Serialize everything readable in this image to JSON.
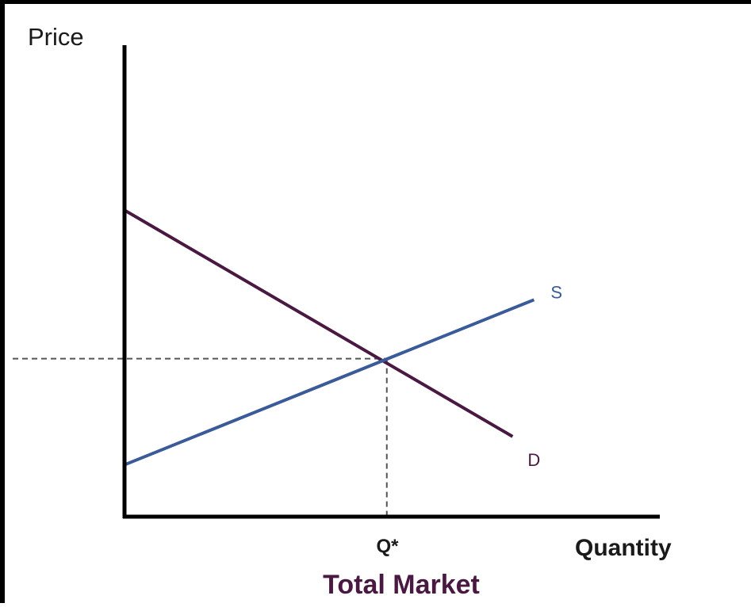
{
  "chart_data": {
    "type": "line",
    "title": "Total Market",
    "xlabel": "Quantity",
    "ylabel": "Price",
    "xlim": [
      0,
      10
    ],
    "ylim": [
      0,
      10
    ],
    "grid": false,
    "x_ticks": [
      {
        "x": 5,
        "label": "Q*"
      }
    ],
    "series": [
      {
        "name": "D",
        "color": "#4a1942",
        "points": [
          [
            0,
            6.5
          ],
          [
            7.25,
            1.7
          ]
        ]
      },
      {
        "name": "S",
        "color": "#3a5a98",
        "points": [
          [
            0,
            1.1
          ],
          [
            7.65,
            4.6
          ]
        ]
      }
    ],
    "equilibrium": {
      "x": 4.9,
      "y": 3.35
    },
    "reference_lines": [
      {
        "orientation": "horizontal",
        "y": 3.35,
        "style": "dashed",
        "color": "#555555"
      },
      {
        "orientation": "vertical",
        "x": 4.9,
        "style": "dashed",
        "color": "#555555"
      }
    ],
    "colors": {
      "axis": "#000000",
      "title": "#4a1942",
      "label": "#1a1a1a"
    }
  }
}
